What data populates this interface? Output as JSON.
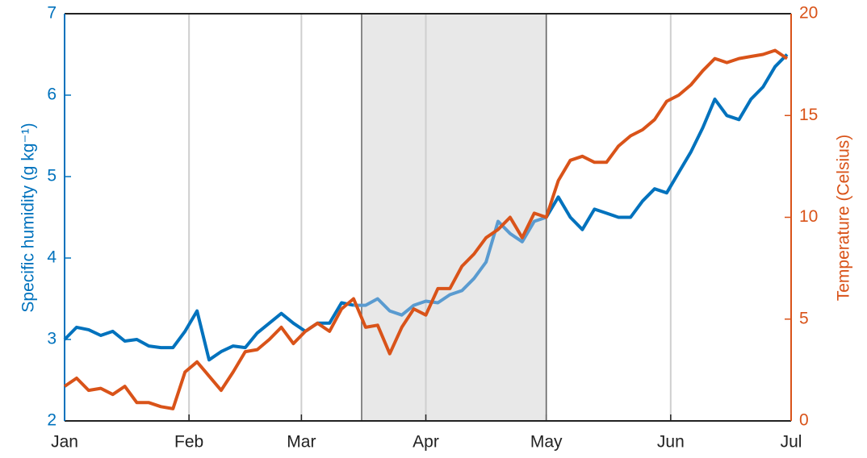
{
  "chart_data": {
    "type": "line",
    "x": [
      0,
      3,
      6,
      9,
      12,
      15,
      18,
      21,
      24,
      27,
      30,
      33,
      36,
      39,
      42,
      45,
      48,
      51,
      54,
      57,
      60,
      63,
      66,
      69,
      72,
      75,
      78,
      81,
      84,
      87,
      90,
      93,
      96,
      99,
      102,
      105,
      108,
      111,
      114,
      117,
      120,
      123,
      126,
      129,
      132,
      135,
      138,
      141,
      144,
      147,
      150,
      153,
      156,
      159,
      162,
      165,
      168,
      171,
      174,
      177,
      180
    ],
    "xlim": [
      0,
      181
    ],
    "xticks": [
      {
        "value": 0,
        "label": "Jan"
      },
      {
        "value": 31,
        "label": "Feb"
      },
      {
        "value": 59,
        "label": "Mar"
      },
      {
        "value": 90,
        "label": "Apr"
      },
      {
        "value": 120,
        "label": "May"
      },
      {
        "value": 151,
        "label": "Jun"
      },
      {
        "value": 181,
        "label": "Jul"
      }
    ],
    "ylabel": "Specific humidity (g kg⁻¹)",
    "y2label": "Temperature (Celsius)",
    "ylim": [
      2,
      7
    ],
    "yticks": [
      2,
      3,
      4,
      5,
      6,
      7
    ],
    "y2lim": [
      0,
      20
    ],
    "y2ticks": [
      0,
      5,
      10,
      15,
      20
    ],
    "grid": true,
    "shade_x": [
      74,
      120
    ],
    "shade_color": "#e8e8e8",
    "series": [
      {
        "name": "Specific humidity",
        "color": "#0072bd",
        "shade_line_color": "#5a9bd0",
        "values": [
          3.0,
          3.15,
          3.12,
          3.05,
          3.1,
          2.98,
          3.0,
          2.92,
          2.9,
          2.9,
          3.1,
          3.35,
          2.75,
          2.85,
          2.92,
          2.9,
          3.08,
          3.2,
          3.32,
          3.2,
          3.1,
          3.2,
          3.2,
          3.45,
          3.42,
          3.42,
          3.5,
          3.35,
          3.3,
          3.42,
          3.47,
          3.45,
          3.55,
          3.6,
          3.75,
          3.95,
          4.45,
          4.3,
          4.2,
          4.45,
          4.5,
          4.75,
          4.5,
          4.35,
          4.6,
          4.55,
          4.5,
          4.5,
          4.7,
          4.85,
          4.8,
          5.05,
          5.3,
          5.6,
          5.95,
          5.75,
          5.7,
          5.95,
          6.1,
          6.35,
          6.5
        ]
      },
      {
        "name": "Temperature",
        "color": "#d95319",
        "axis": "y2",
        "values": [
          1.7,
          2.1,
          1.5,
          1.6,
          1.3,
          1.7,
          0.9,
          0.9,
          0.7,
          0.6,
          2.4,
          2.9,
          2.2,
          1.5,
          2.4,
          3.4,
          3.5,
          4.0,
          4.6,
          3.8,
          4.4,
          4.8,
          4.4,
          5.5,
          6.0,
          4.6,
          4.7,
          3.3,
          4.6,
          5.5,
          5.2,
          6.5,
          6.5,
          7.6,
          8.2,
          9.0,
          9.4,
          10.0,
          9.0,
          10.2,
          10.0,
          11.8,
          12.8,
          13.0,
          12.7,
          12.7,
          13.5,
          14.0,
          14.3,
          14.8,
          15.7,
          16.0,
          16.5,
          17.2,
          17.8,
          17.6,
          17.8,
          17.9,
          18.0,
          18.2,
          17.8
        ]
      }
    ]
  }
}
